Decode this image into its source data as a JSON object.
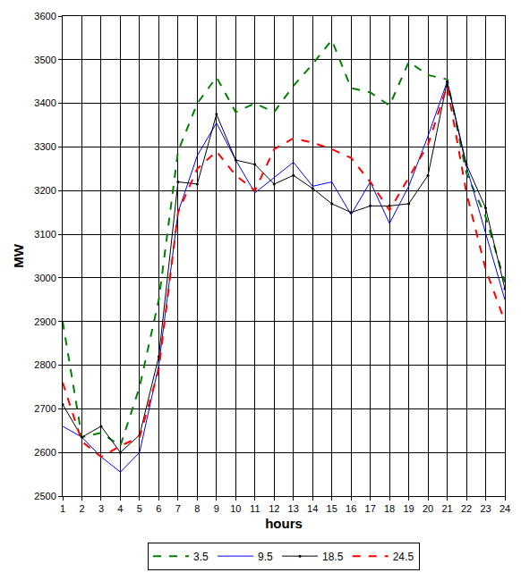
{
  "chart_data": {
    "type": "line",
    "x_label": "hours",
    "y_label": "MW",
    "x": [
      1,
      2,
      3,
      4,
      5,
      6,
      7,
      8,
      9,
      10,
      11,
      12,
      13,
      14,
      15,
      16,
      17,
      18,
      19,
      20,
      21,
      22,
      23,
      24
    ],
    "xlim": [
      1,
      24
    ],
    "xticks": [
      1,
      2,
      3,
      4,
      5,
      6,
      7,
      8,
      9,
      10,
      11,
      12,
      13,
      14,
      15,
      16,
      17,
      18,
      19,
      20,
      21,
      22,
      23,
      24
    ],
    "ylim": [
      2500,
      3600
    ],
    "yticks": [
      2500,
      2600,
      2700,
      2800,
      2900,
      3000,
      3100,
      3200,
      3300,
      3400,
      3500,
      3600
    ],
    "grid": true,
    "legend": "bottom",
    "series": [
      {
        "name": "3.5",
        "color": "#008000",
        "line_style": "dashed",
        "marker": "none",
        "values": [
          2900,
          2635,
          2645,
          2615,
          2750,
          2950,
          3290,
          3400,
          3460,
          3380,
          3400,
          3380,
          3440,
          3490,
          3545,
          3435,
          3425,
          3395,
          3495,
          3465,
          3455,
          3240,
          3140,
          2990
        ]
      },
      {
        "name": "9.5",
        "color": "#0000ff",
        "line_style": "solid",
        "marker": "none",
        "values": [
          2660,
          2635,
          2590,
          2555,
          2600,
          2800,
          3150,
          3280,
          3355,
          3270,
          3195,
          3230,
          3265,
          3210,
          3220,
          3145,
          3220,
          3125,
          3210,
          3325,
          3450,
          3255,
          3100,
          2950
        ]
      },
      {
        "name": "18.5",
        "color": "#000000",
        "line_style": "solid",
        "marker": "circle",
        "values": [
          2710,
          2635,
          2660,
          2600,
          2640,
          2820,
          3220,
          3215,
          3375,
          3270,
          3260,
          3215,
          3235,
          3205,
          3170,
          3150,
          3165,
          3165,
          3170,
          3235,
          3450,
          3260,
          3160,
          2975
        ]
      },
      {
        "name": "24.5",
        "color": "#ff0000",
        "line_style": "dashed",
        "marker": "none",
        "values": [
          2760,
          2625,
          2590,
          2615,
          2635,
          2790,
          3150,
          3250,
          3290,
          3235,
          3200,
          3295,
          3320,
          3310,
          3295,
          3275,
          3220,
          3155,
          3230,
          3305,
          3440,
          3195,
          3020,
          2900
        ]
      }
    ]
  }
}
